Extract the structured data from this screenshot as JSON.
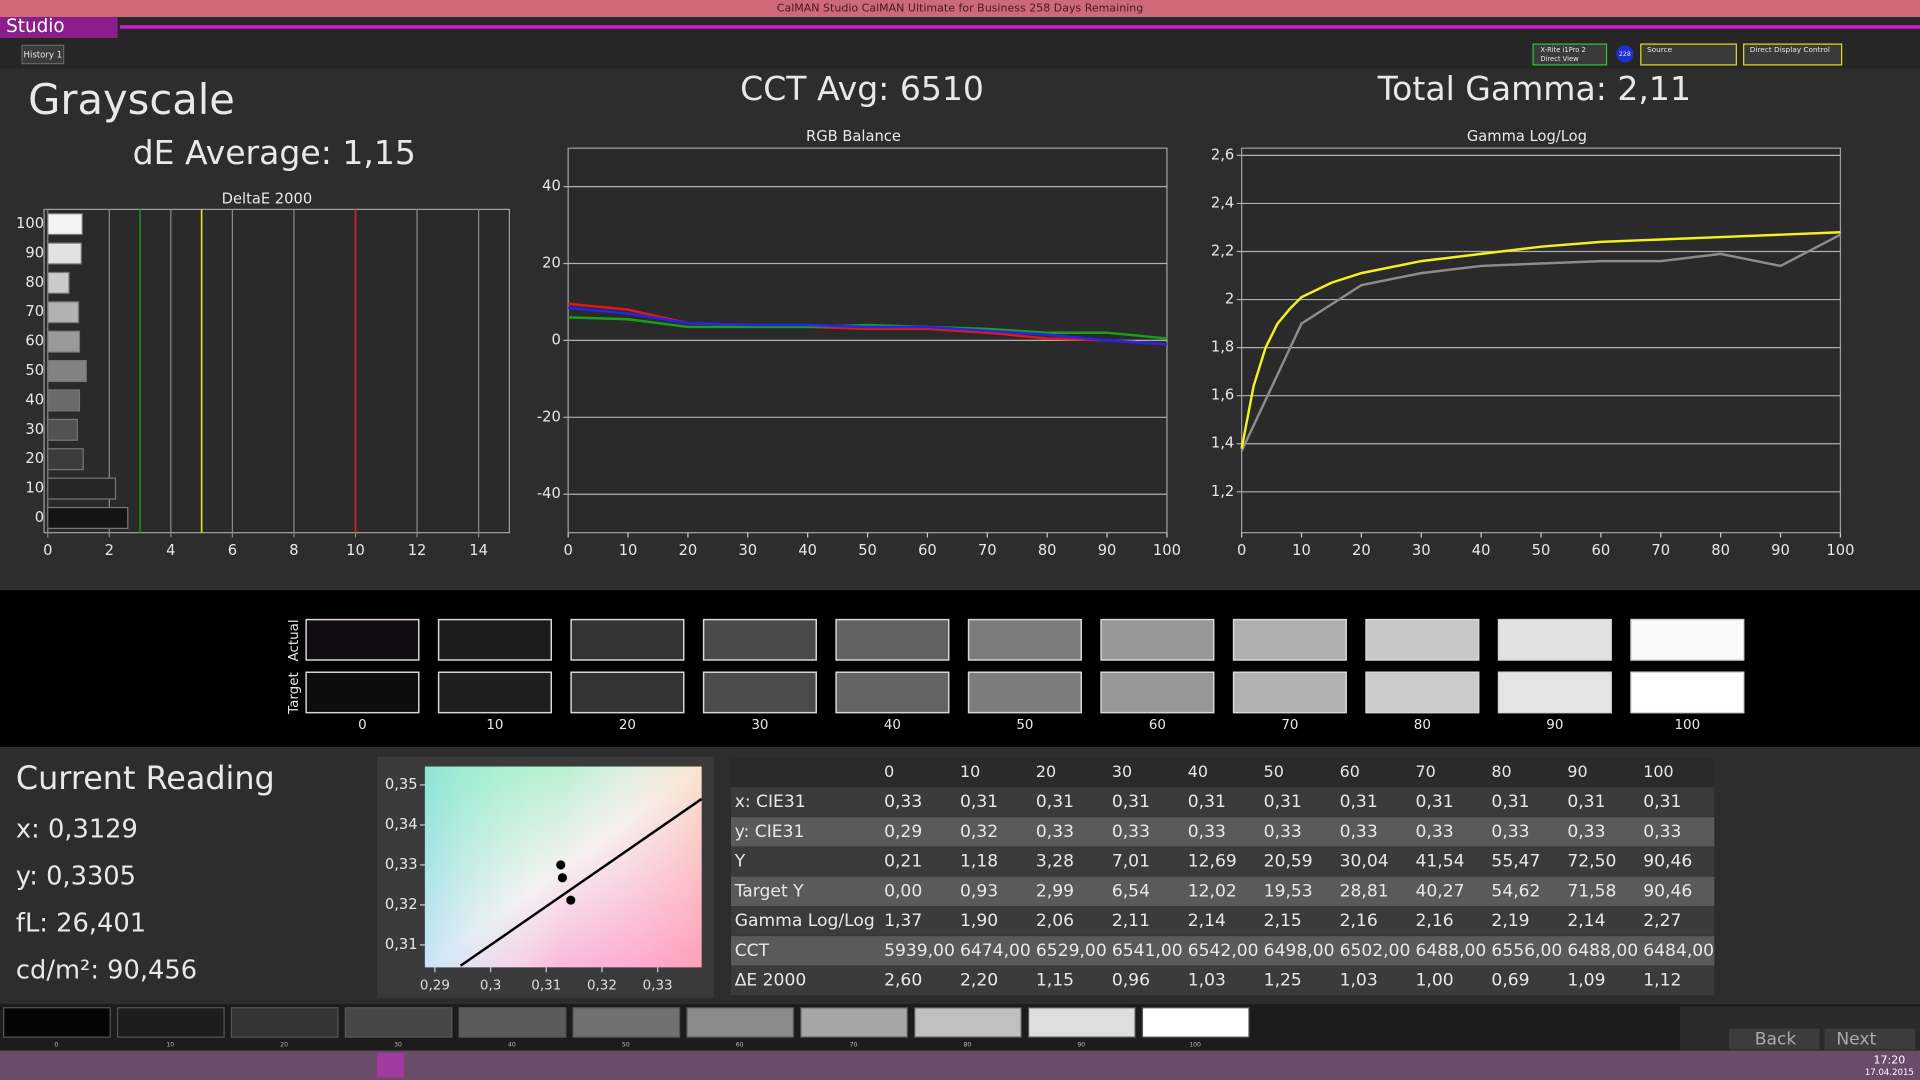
{
  "window": {
    "title": "CalMAN Studio CalMAN Ultimate for Business 258 Days Remaining",
    "app_button": "Studio",
    "tab": "History 1",
    "meter": "X-Rite i1Pro 2",
    "meter_mode": "Direct View",
    "badge": "228",
    "source": "Source",
    "display_control": "Direct Display Control"
  },
  "header": {
    "title": "Grayscale",
    "de_average": "dE Average: 1,15",
    "cct_avg": "CCT Avg: 6510",
    "total_gamma": "Total Gamma: 2,11"
  },
  "chart_data": [
    {
      "type": "bar",
      "orientation": "horizontal",
      "title": "DeltaE 2000",
      "categories": [
        "100",
        "90",
        "80",
        "70",
        "60",
        "50",
        "40",
        "30",
        "20",
        "10",
        "0"
      ],
      "values": [
        1.12,
        1.09,
        0.69,
        1.0,
        1.03,
        1.25,
        1.03,
        0.96,
        1.15,
        2.2,
        2.6
      ],
      "colors": [
        "#f4f4f4",
        "#e2e2e2",
        "#cacaca",
        "#b2b2b2",
        "#9a9a9a",
        "#828282",
        "#6a6a6a",
        "#525252",
        "#3c3c3c",
        "#262626",
        "#141414"
      ],
      "xlim": [
        0,
        15
      ],
      "xticks": [
        0,
        2,
        4,
        6,
        8,
        10,
        12,
        14
      ],
      "grid": true,
      "reference_lines": [
        {
          "value": 3,
          "color": "#1c8c1c"
        },
        {
          "value": 5,
          "color": "#e6e61a"
        },
        {
          "value": 10,
          "color": "#d42020"
        }
      ]
    },
    {
      "type": "line",
      "title": "RGB Balance",
      "x": [
        0,
        10,
        20,
        30,
        40,
        50,
        60,
        70,
        80,
        90,
        100
      ],
      "xlim": [
        0,
        100
      ],
      "xticks": [
        0,
        10,
        20,
        30,
        40,
        50,
        60,
        70,
        80,
        90,
        100
      ],
      "ylim": [
        -50,
        50
      ],
      "yticks": [
        -40,
        -20,
        0,
        20,
        40
      ],
      "grid": true,
      "series": [
        {
          "color": "#e01818",
          "values": [
            9.5,
            8,
            4.5,
            4,
            3.5,
            3,
            3,
            2,
            0.5,
            0,
            -1
          ]
        },
        {
          "color": "#18a018",
          "values": [
            6,
            5.5,
            3.5,
            3.5,
            3.5,
            4,
            3.5,
            3,
            2,
            2,
            0.5
          ]
        },
        {
          "color": "#2424f0",
          "values": [
            8.5,
            7,
            4.5,
            4,
            4,
            3.5,
            3.5,
            2.5,
            1.5,
            0,
            -1
          ]
        }
      ]
    },
    {
      "type": "line",
      "title": "Gamma Log/Log",
      "xlim": [
        0,
        100
      ],
      "xticks": [
        0,
        10,
        20,
        30,
        40,
        50,
        60,
        70,
        80,
        90,
        100
      ],
      "ylim": [
        1.03,
        2.63
      ],
      "yticks": [
        {
          "value": 1.2,
          "label": "1,2"
        },
        {
          "value": 1.4,
          "label": "1,4"
        },
        {
          "value": 1.6,
          "label": "1,6"
        },
        {
          "value": 1.8,
          "label": "1,8"
        },
        2,
        {
          "value": 2.2,
          "label": "2,2"
        },
        {
          "value": 2.4,
          "label": "2,4"
        },
        {
          "value": 2.6,
          "label": "2,6"
        }
      ],
      "grid": true,
      "series": [
        {
          "color": "#8c8c8c",
          "x": [
            0,
            10,
            20,
            30,
            40,
            50,
            60,
            70,
            80,
            90,
            100
          ],
          "values": [
            1.37,
            1.9,
            2.06,
            2.11,
            2.14,
            2.15,
            2.16,
            2.16,
            2.19,
            2.14,
            2.27
          ]
        },
        {
          "color": "#f2f21e",
          "x": [
            0,
            2,
            4,
            6,
            8,
            10,
            15,
            20,
            30,
            40,
            50,
            60,
            70,
            80,
            90,
            100
          ],
          "values": [
            1.38,
            1.64,
            1.8,
            1.9,
            1.96,
            2.01,
            2.07,
            2.11,
            2.16,
            2.19,
            2.22,
            2.24,
            2.25,
            2.26,
            2.27,
            2.28
          ]
        }
      ]
    },
    {
      "type": "scatter",
      "xlim": [
        0.2882,
        0.3379
      ],
      "xticks": [
        {
          "value": 0.29,
          "label": "0,29"
        },
        {
          "value": 0.3,
          "label": "0,3"
        },
        {
          "value": 0.31,
          "label": "0,31"
        },
        {
          "value": 0.32,
          "label": "0,32"
        },
        {
          "value": 0.33,
          "label": "0,33"
        }
      ],
      "ylim": [
        0.3044,
        0.3546
      ],
      "yticks": [
        {
          "value": 0.31,
          "label": "0,31"
        },
        {
          "value": 0.32,
          "label": "0,32"
        },
        {
          "value": 0.33,
          "label": "0,33"
        },
        {
          "value": 0.34,
          "label": "0,34"
        },
        {
          "value": 0.35,
          "label": "0,35"
        }
      ],
      "series": [
        {
          "kind": "line",
          "color": "#000000",
          "x": [
            0.2946,
            0.3379
          ],
          "values": [
            0.3048,
            0.3465
          ]
        },
        {
          "color": "#000000",
          "x": [
            0.3144
          ],
          "values": [
            0.3212
          ]
        },
        {
          "color": "#000000",
          "x": [
            0.3126,
            0.3129
          ],
          "values": [
            0.33,
            0.3268
          ]
        }
      ]
    }
  ],
  "swatches": {
    "row_labels": [
      "Actual",
      "Target"
    ],
    "labels": [
      "0",
      "10",
      "20",
      "30",
      "40",
      "50",
      "60",
      "70",
      "80",
      "90",
      "100"
    ],
    "actual_colors": [
      "#120c10",
      "#1c1c1c",
      "#333333",
      "#4a4a4a",
      "#626262",
      "#7c7c7c",
      "#989898",
      "#b0b0b0",
      "#c8c8c8",
      "#e2e2e2",
      "#fafafa"
    ],
    "target_colors": [
      "#0d0d0d",
      "#1e1e1e",
      "#333333",
      "#4b4b4b",
      "#646464",
      "#7d7d7d",
      "#979797",
      "#b1b1b1",
      "#cbcbcb",
      "#e4e4e4",
      "#ffffff"
    ]
  },
  "current_reading": {
    "title": "Current Reading",
    "lines": [
      "x: 0,3129",
      "y: 0,3305",
      "fL: 26,401",
      "cd/m²: 90,456"
    ]
  },
  "table": {
    "header": [
      "0",
      "10",
      "20",
      "30",
      "40",
      "50",
      "60",
      "70",
      "80",
      "90",
      "100"
    ],
    "rows": [
      [
        "x: CIE31",
        "0,33",
        "0,31",
        "0,31",
        "0,31",
        "0,31",
        "0,31",
        "0,31",
        "0,31",
        "0,31",
        "0,31",
        "0,31"
      ],
      [
        "y: CIE31",
        "0,29",
        "0,32",
        "0,33",
        "0,33",
        "0,33",
        "0,33",
        "0,33",
        "0,33",
        "0,33",
        "0,33",
        "0,33"
      ],
      [
        "Y",
        "0,21",
        "1,18",
        "3,28",
        "7,01",
        "12,69",
        "20,59",
        "30,04",
        "41,54",
        "55,47",
        "72,50",
        "90,46"
      ],
      [
        "Target Y",
        "0,00",
        "0,93",
        "2,99",
        "6,54",
        "12,02",
        "19,53",
        "28,81",
        "40,27",
        "54,62",
        "71,58",
        "90,46"
      ],
      [
        "Gamma Log/Log",
        "1,37",
        "1,90",
        "2,06",
        "2,11",
        "2,14",
        "2,15",
        "2,16",
        "2,16",
        "2,19",
        "2,14",
        "2,27"
      ],
      [
        "CCT",
        "5939,00",
        "6474,00",
        "6529,00",
        "6541,00",
        "6542,00",
        "6498,00",
        "6502,00",
        "6488,00",
        "6556,00",
        "6488,00",
        "6484,00"
      ],
      [
        "ΔE 2000",
        "2,60",
        "2,20",
        "1,15",
        "0,96",
        "1,03",
        "1,25",
        "1,03",
        "1,00",
        "0,69",
        "1,09",
        "1,12"
      ]
    ]
  },
  "patches": {
    "colors": [
      "#050505",
      "#1d1d1d",
      "#333333",
      "#474747",
      "#5b5b5b",
      "#707070",
      "#8a8a8a",
      "#a6a6a6",
      "#c0c0c0",
      "#dedede",
      "#ffffff"
    ]
  },
  "nav": {
    "back": "Back",
    "next": "Next"
  },
  "taskbar": {
    "time": "17:20",
    "date": "17.04.2015"
  }
}
